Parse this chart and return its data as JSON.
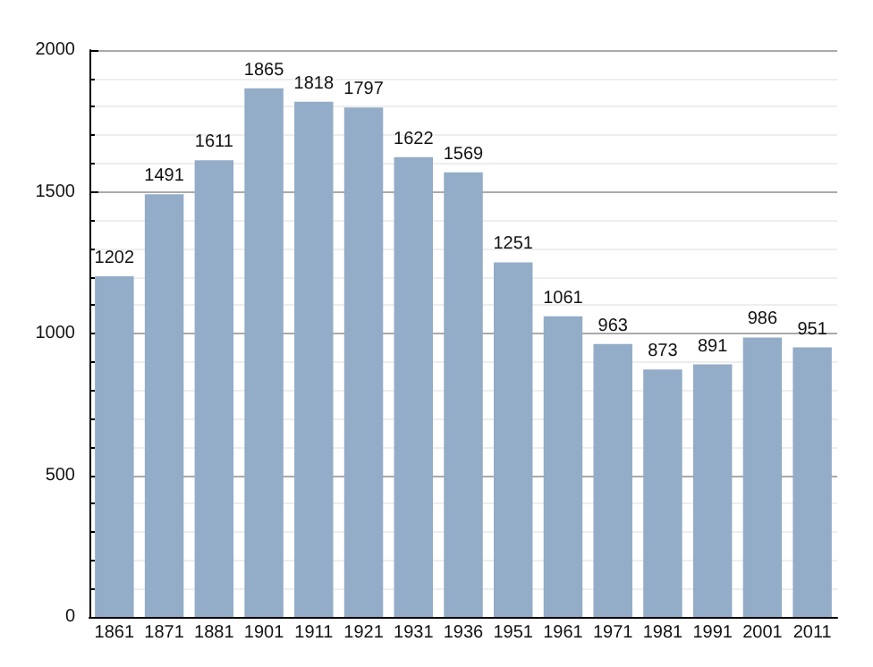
{
  "chart_data": {
    "type": "bar",
    "categories": [
      "1861",
      "1871",
      "1881",
      "1901",
      "1911",
      "1921",
      "1931",
      "1936",
      "1951",
      "1961",
      "1971",
      "1981",
      "1991",
      "2001",
      "2011"
    ],
    "values": [
      1202,
      1491,
      1611,
      1865,
      1818,
      1797,
      1622,
      1569,
      1251,
      1061,
      963,
      873,
      891,
      986,
      951
    ],
    "color": "#93acc8",
    "ylim": [
      0,
      2000
    ],
    "yticks": [
      0,
      500,
      1000,
      1500,
      2000
    ],
    "grid": "y",
    "data_labels": true
  }
}
